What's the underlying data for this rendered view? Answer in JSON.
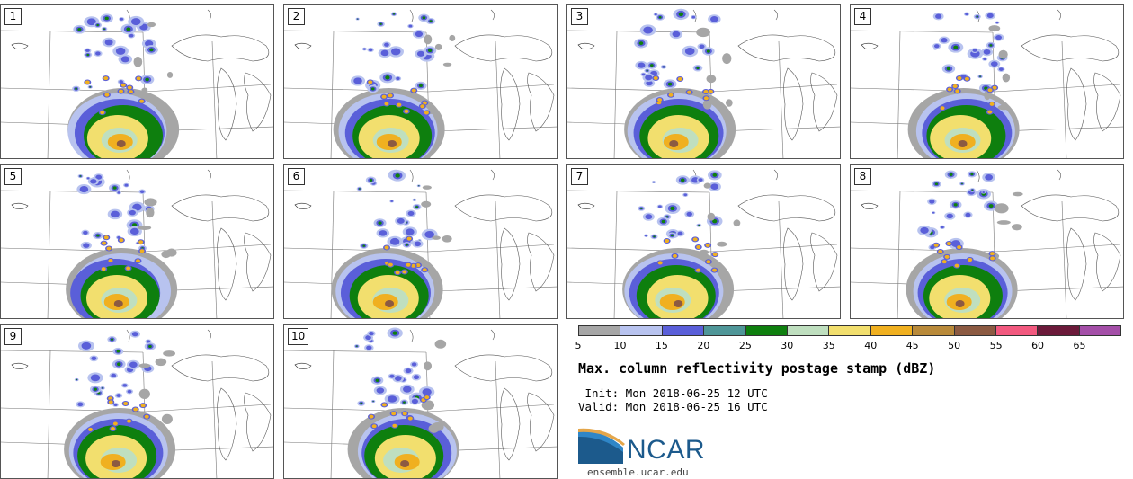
{
  "panels": [
    "1",
    "2",
    "3",
    "4",
    "5",
    "6",
    "7",
    "8",
    "9",
    "10"
  ],
  "colorbar": {
    "colors": [
      "#a6a6a6",
      "#b8c3ef",
      "#5a5fd9",
      "#4f9698",
      "#0e7f0e",
      "#bfdfbf",
      "#f2df6e",
      "#f0b020",
      "#b98a3a",
      "#8c5a42",
      "#f2597f",
      "#6b1a3a",
      "#a44fa8"
    ],
    "ticks": [
      "5",
      "10",
      "15",
      "20",
      "25",
      "30",
      "35",
      "40",
      "45",
      "50",
      "55",
      "60",
      "65"
    ]
  },
  "title": "Max. column reflectivity postage stamp (dBZ)",
  "init": " Init: Mon 2018-06-25 12 UTC",
  "valid": "Valid: Mon 2018-06-25 16 UTC",
  "logo": {
    "text": "NCAR",
    "colors": {
      "dark": "#1c5a8c",
      "light": "#2f86c7",
      "accent": "#e4a64a"
    }
  },
  "site": "ensemble.ucar.edu"
}
